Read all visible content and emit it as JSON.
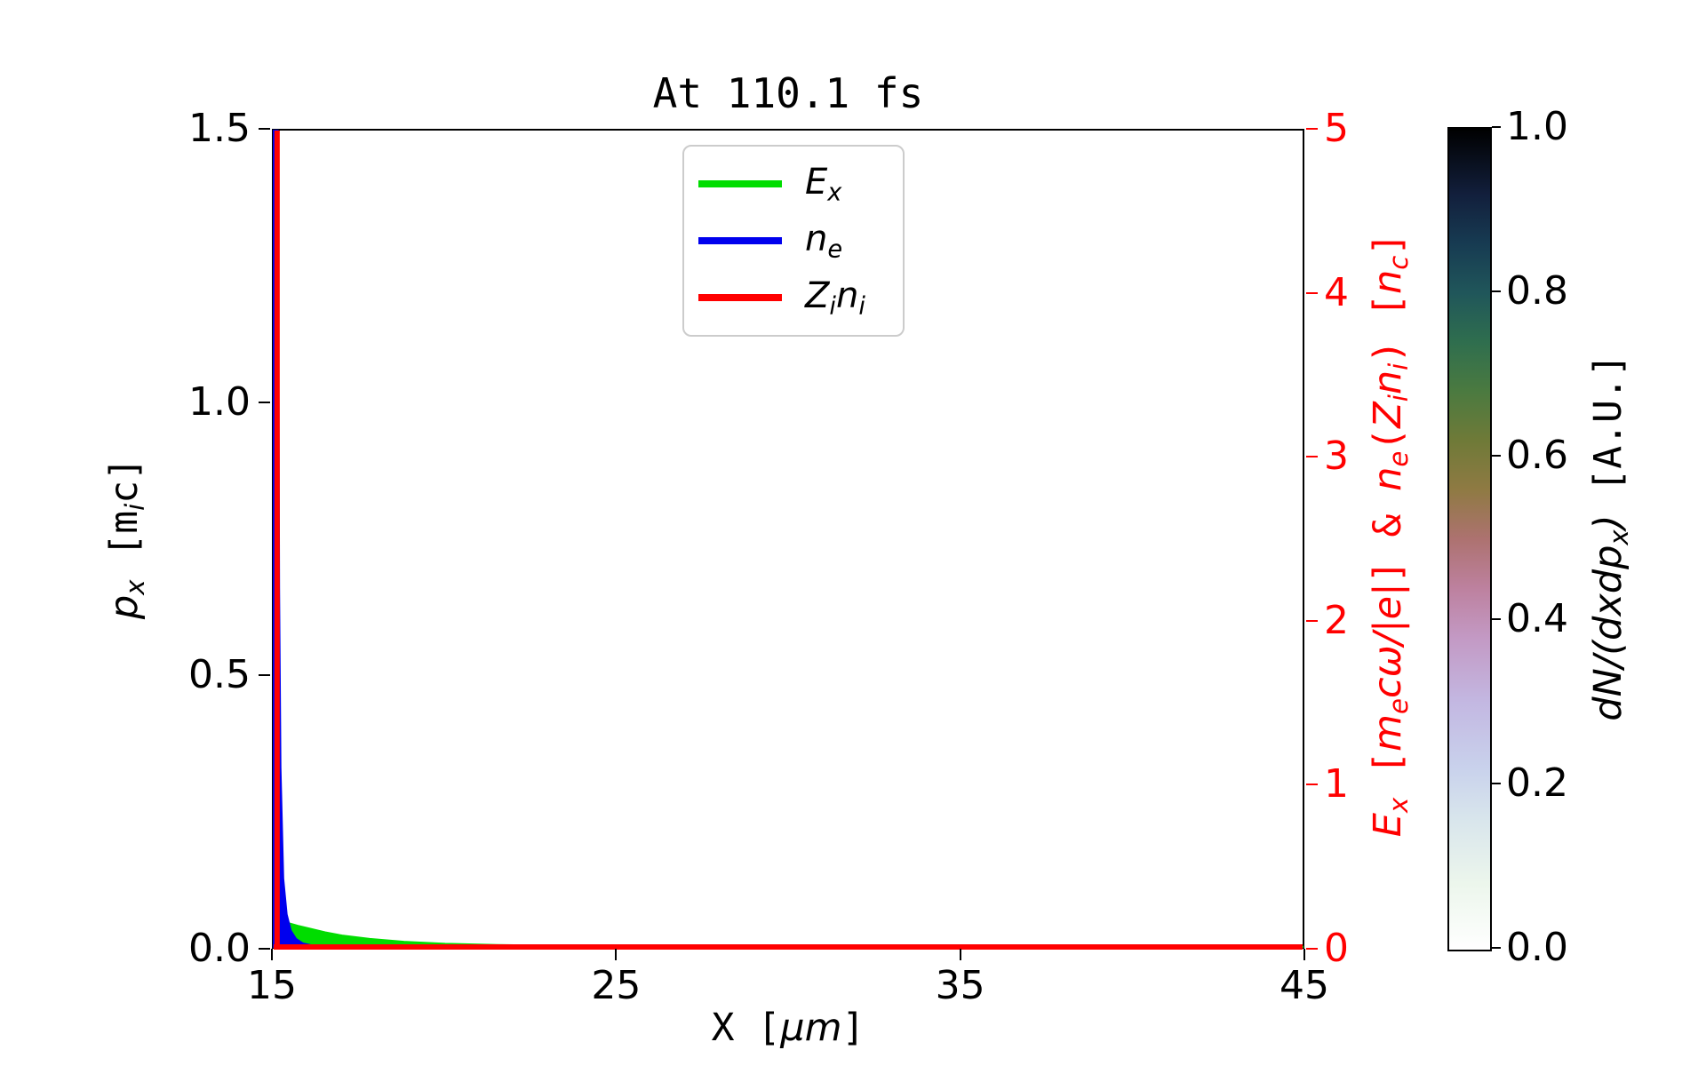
{
  "chart_data": {
    "type": "line",
    "title": "At 110.1 fs",
    "x_axis": {
      "label_tex": "X [$μm$]",
      "lim": [
        15,
        45
      ],
      "ticks": [
        15,
        25,
        35,
        45
      ],
      "tick_labels": [
        "15",
        "25",
        "35",
        "45"
      ],
      "color": "#000000"
    },
    "y_axis_left": {
      "label_tex": "$p_x$ [m$_i$c]",
      "lim": [
        0,
        1.5
      ],
      "ticks": [
        0,
        0.5,
        1.0,
        1.5
      ],
      "tick_labels": [
        "0.0",
        "0.5",
        "1.0",
        "1.5"
      ],
      "color": "#000000"
    },
    "y_axis_right": {
      "label_tex": "$E_x$ [$m_ecω/|e|$] & $n_e$($Z_in_i$) [$n_c$]",
      "lim": [
        0,
        5
      ],
      "ticks": [
        0,
        1,
        2,
        3,
        4,
        5
      ],
      "tick_labels": [
        "0",
        "1",
        "2",
        "3",
        "4",
        "5"
      ],
      "color": "#ff0000"
    },
    "legend": {
      "position": "upper center",
      "items": [
        {
          "tex": "$E_x$",
          "color": "#00dd00"
        },
        {
          "tex": "$n_e$",
          "color": "#0000ee"
        },
        {
          "tex": "$Z_in_i$",
          "color": "#ff0000"
        }
      ]
    },
    "series": [
      {
        "name": "Ex",
        "tex": "$E_x$",
        "color": "#00dd00",
        "style": "area",
        "axis": "right",
        "points": [
          [
            15.0,
            5
          ],
          [
            15.06,
            5
          ],
          [
            15.1,
            1.5
          ],
          [
            15.15,
            0.5
          ],
          [
            15.25,
            0.22
          ],
          [
            15.45,
            0.145
          ],
          [
            15.7,
            0.13
          ],
          [
            16.0,
            0.115
          ],
          [
            16.5,
            0.09
          ],
          [
            17.0,
            0.07
          ],
          [
            17.8,
            0.05
          ],
          [
            18.8,
            0.032
          ],
          [
            20.0,
            0.02
          ],
          [
            21.5,
            0.012
          ],
          [
            23.5,
            0.007
          ],
          [
            26.0,
            0.004
          ],
          [
            30.0,
            0.003
          ],
          [
            36.0,
            0.002
          ],
          [
            45.0,
            0.002
          ]
        ]
      },
      {
        "name": "ne",
        "tex": "$n_e$",
        "color": "#0000ee",
        "style": "area",
        "axis": "right",
        "points": [
          [
            15.0,
            5
          ],
          [
            15.12,
            5
          ],
          [
            15.16,
            2.2
          ],
          [
            15.2,
            1.1
          ],
          [
            15.28,
            0.42
          ],
          [
            15.38,
            0.2
          ],
          [
            15.5,
            0.1
          ],
          [
            15.65,
            0.05
          ],
          [
            15.85,
            0.022
          ],
          [
            16.1,
            0.01
          ],
          [
            16.6,
            0.004
          ],
          [
            17.5,
            0.001
          ],
          [
            45.0,
            0.0
          ]
        ]
      },
      {
        "name": "Zini",
        "tex": "$Z_in_i$",
        "color": "#ff0000",
        "style": "line",
        "axis": "right",
        "width": 6,
        "lines": [
          [
            [
              15.1,
              0
            ],
            [
              15.1,
              5
            ]
          ],
          [
            [
              15.0,
              0
            ],
            [
              45.0,
              0
            ]
          ]
        ]
      }
    ],
    "colorbar": {
      "label_tex": "$dN/(dxdp_x)$ [A.U.]",
      "lim": [
        0,
        1
      ],
      "ticks": [
        0,
        0.2,
        0.4,
        0.6,
        0.8,
        1.0
      ],
      "tick_labels": [
        "0.0",
        "0.2",
        "0.4",
        "0.6",
        "0.8",
        "1.0"
      ],
      "colormap_name": "cubehelix-reversed (white at 0.0, black at 1.0)",
      "gradient_bottom_to_top": [
        [
          "0%",
          "#ffffff"
        ],
        [
          "8%",
          "#ecf6ec"
        ],
        [
          "16%",
          "#d8e5ec"
        ],
        [
          "22%",
          "#c9d2ec"
        ],
        [
          "30%",
          "#c3b8e2"
        ],
        [
          "38%",
          "#c399c4"
        ],
        [
          "44%",
          "#bd819f"
        ],
        [
          "50%",
          "#ad7270"
        ],
        [
          "56%",
          "#8f7a43"
        ],
        [
          "62%",
          "#6f7a38"
        ],
        [
          "68%",
          "#4b7a40"
        ],
        [
          "74%",
          "#2f6e4e"
        ],
        [
          "80%",
          "#20565a"
        ],
        [
          "86%",
          "#173b52"
        ],
        [
          "92%",
          "#121f3c"
        ],
        [
          "100%",
          "#000000"
        ]
      ]
    }
  }
}
